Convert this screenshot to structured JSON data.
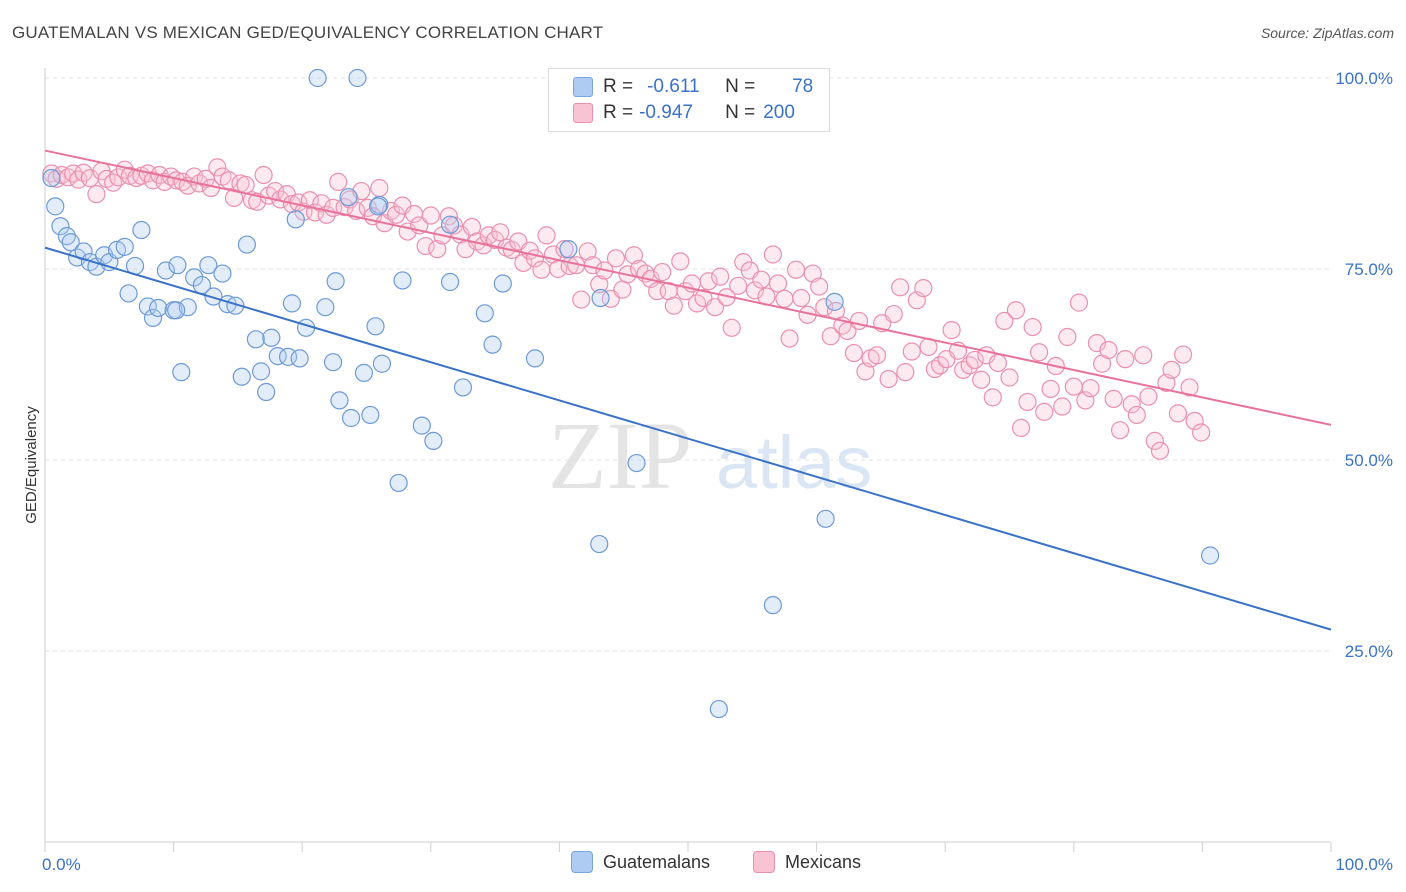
{
  "title": "GUATEMALAN VS MEXICAN GED/EQUIVALENCY CORRELATION CHART",
  "source": "Source: ZipAtlas.com",
  "watermark": {
    "zip": "ZIP",
    "atlas": "atlas"
  },
  "legend_top": [
    {
      "r_label": "R =",
      "r_value": "-0.611",
      "n_label": "N =",
      "n_value": "78",
      "fill": "#aecbf2",
      "stroke": "#7aa5e0"
    },
    {
      "r_label": "R =",
      "r_value": "-0.947",
      "n_label": "N =",
      "n_value": "200",
      "fill": "#f8c3d3",
      "stroke": "#ea90ad"
    }
  ],
  "legend_bottom": [
    {
      "label": "Guatemalans",
      "fill": "#aecbf2",
      "stroke": "#7aa5e0"
    },
    {
      "label": "Mexicans",
      "fill": "#f8c3d3",
      "stroke": "#ea90ad"
    }
  ],
  "chart_data": {
    "type": "scatter",
    "title": "GUATEMALAN VS MEXICAN GED/EQUIVALENCY CORRELATION CHART",
    "xlabel": "",
    "ylabel": "GED/Equivalency",
    "xlim": [
      0,
      100
    ],
    "ylim": [
      0,
      100
    ],
    "x_tick_labels": [
      "0.0%",
      "100.0%"
    ],
    "y_ticks": [
      25,
      50,
      75,
      100
    ],
    "y_tick_labels": [
      "25.0%",
      "50.0%",
      "75.0%",
      "100.0%"
    ],
    "grid": true,
    "legend_placement": "top-center",
    "series": [
      {
        "name": "Guatemalans",
        "color": "#5b8fd8",
        "trend": {
          "x": [
            0,
            100
          ],
          "y": [
            77.8,
            27.8
          ],
          "color": "#3a72c8"
        },
        "points": [
          [
            0.5,
            86.9
          ],
          [
            0.8,
            83.2
          ],
          [
            1.2,
            80.6
          ],
          [
            1.7,
            79.3
          ],
          [
            2.0,
            78.5
          ],
          [
            2.5,
            76.5
          ],
          [
            3.0,
            77.3
          ],
          [
            3.5,
            75.9
          ],
          [
            4.0,
            75.3
          ],
          [
            4.6,
            76.8
          ],
          [
            5.0,
            75.9
          ],
          [
            5.6,
            77.5
          ],
          [
            6.2,
            77.9
          ],
          [
            6.5,
            71.8
          ],
          [
            7.0,
            75.4
          ],
          [
            7.5,
            80.1
          ],
          [
            8.0,
            70.1
          ],
          [
            8.4,
            68.6
          ],
          [
            8.8,
            69.9
          ],
          [
            9.4,
            74.8
          ],
          [
            10.0,
            69.6
          ],
          [
            10.3,
            75.5
          ],
          [
            10.6,
            61.5
          ],
          [
            11.1,
            70.0
          ],
          [
            11.6,
            73.9
          ],
          [
            12.2,
            72.9
          ],
          [
            12.7,
            75.5
          ],
          [
            13.1,
            71.4
          ],
          [
            13.8,
            74.4
          ],
          [
            14.2,
            70.4
          ],
          [
            14.8,
            70.2
          ],
          [
            15.3,
            60.9
          ],
          [
            15.7,
            78.2
          ],
          [
            16.4,
            65.8
          ],
          [
            16.8,
            61.6
          ],
          [
            17.2,
            58.9
          ],
          [
            17.6,
            66.0
          ],
          [
            18.1,
            63.6
          ],
          [
            18.9,
            63.5
          ],
          [
            19.2,
            70.5
          ],
          [
            19.5,
            81.5
          ],
          [
            19.8,
            63.3
          ],
          [
            20.3,
            67.3
          ],
          [
            21.2,
            100.0
          ],
          [
            21.8,
            70.0
          ],
          [
            22.4,
            62.8
          ],
          [
            22.6,
            73.4
          ],
          [
            22.9,
            57.8
          ],
          [
            23.6,
            84.4
          ],
          [
            23.8,
            55.5
          ],
          [
            24.3,
            100.0
          ],
          [
            24.8,
            61.4
          ],
          [
            25.3,
            55.9
          ],
          [
            25.7,
            67.5
          ],
          [
            26.0,
            83.4
          ],
          [
            26.2,
            62.6
          ],
          [
            27.5,
            47.0
          ],
          [
            27.8,
            73.5
          ],
          [
            29.3,
            54.5
          ],
          [
            30.2,
            52.5
          ],
          [
            31.5,
            73.3
          ],
          [
            32.5,
            59.5
          ],
          [
            34.2,
            69.2
          ],
          [
            34.8,
            65.1
          ],
          [
            35.6,
            73.1
          ],
          [
            38.1,
            63.3
          ],
          [
            43.1,
            39.0
          ],
          [
            43.2,
            71.2
          ],
          [
            46.0,
            49.6
          ],
          [
            52.4,
            17.4
          ],
          [
            56.6,
            31.0
          ],
          [
            60.7,
            42.3
          ],
          [
            61.4,
            70.7
          ],
          [
            90.6,
            37.5
          ],
          [
            40.7,
            77.6
          ],
          [
            25.9,
            83.2
          ],
          [
            31.5,
            80.8
          ],
          [
            10.2,
            69.6
          ]
        ]
      },
      {
        "name": "Mexicans",
        "color": "#ea7fa3",
        "trend": {
          "x": [
            0,
            100
          ],
          "y": [
            90.5,
            54.6
          ],
          "color": "#e8739a"
        },
        "points": [
          [
            0.5,
            87.5
          ],
          [
            0.9,
            86.8
          ],
          [
            1.3,
            87.3
          ],
          [
            1.8,
            87.0
          ],
          [
            2.2,
            87.5
          ],
          [
            2.6,
            86.7
          ],
          [
            3.0,
            87.6
          ],
          [
            3.5,
            86.9
          ],
          [
            4.0,
            84.8
          ],
          [
            4.4,
            87.8
          ],
          [
            4.8,
            86.8
          ],
          [
            5.3,
            86.3
          ],
          [
            5.7,
            87.0
          ],
          [
            6.2,
            88.0
          ],
          [
            6.6,
            87.2
          ],
          [
            7.1,
            86.9
          ],
          [
            7.5,
            87.2
          ],
          [
            8.0,
            87.5
          ],
          [
            8.4,
            86.6
          ],
          [
            8.9,
            87.3
          ],
          [
            9.3,
            86.4
          ],
          [
            9.8,
            87.1
          ],
          [
            10.2,
            86.6
          ],
          [
            10.7,
            86.4
          ],
          [
            11.1,
            85.9
          ],
          [
            11.6,
            87.1
          ],
          [
            12.0,
            86.2
          ],
          [
            12.5,
            86.8
          ],
          [
            12.9,
            85.6
          ],
          [
            13.4,
            88.3
          ],
          [
            13.8,
            87.1
          ],
          [
            14.3,
            86.6
          ],
          [
            14.7,
            84.3
          ],
          [
            15.2,
            86.2
          ],
          [
            15.6,
            86.0
          ],
          [
            16.1,
            84.0
          ],
          [
            16.5,
            83.8
          ],
          [
            17.0,
            87.3
          ],
          [
            17.4,
            84.6
          ],
          [
            17.9,
            85.2
          ],
          [
            18.3,
            84.1
          ],
          [
            18.8,
            84.8
          ],
          [
            19.2,
            83.5
          ],
          [
            19.7,
            83.7
          ],
          [
            20.1,
            82.5
          ],
          [
            20.6,
            84.0
          ],
          [
            21.0,
            82.4
          ],
          [
            21.5,
            83.6
          ],
          [
            21.9,
            82.1
          ],
          [
            22.4,
            83.0
          ],
          [
            22.8,
            86.4
          ],
          [
            23.3,
            83.1
          ],
          [
            23.7,
            84.1
          ],
          [
            24.2,
            82.6
          ],
          [
            24.6,
            85.2
          ],
          [
            25.1,
            83.0
          ],
          [
            25.5,
            81.9
          ],
          [
            26.0,
            85.6
          ],
          [
            26.4,
            81.0
          ],
          [
            26.9,
            82.6
          ],
          [
            27.3,
            82.1
          ],
          [
            27.8,
            83.3
          ],
          [
            28.2,
            79.9
          ],
          [
            28.7,
            82.2
          ],
          [
            29.1,
            80.7
          ],
          [
            29.6,
            78.0
          ],
          [
            30.0,
            82.0
          ],
          [
            30.5,
            77.6
          ],
          [
            30.9,
            79.4
          ],
          [
            31.4,
            81.9
          ],
          [
            31.8,
            80.7
          ],
          [
            32.3,
            79.5
          ],
          [
            32.7,
            77.6
          ],
          [
            33.2,
            80.5
          ],
          [
            33.6,
            78.6
          ],
          [
            34.1,
            78.1
          ],
          [
            34.5,
            79.4
          ],
          [
            35.0,
            78.8
          ],
          [
            35.4,
            79.8
          ],
          [
            35.9,
            77.8
          ],
          [
            36.3,
            77.5
          ],
          [
            36.8,
            78.6
          ],
          [
            37.2,
            75.8
          ],
          [
            37.7,
            77.4
          ],
          [
            38.1,
            76.4
          ],
          [
            38.6,
            74.9
          ],
          [
            39.0,
            79.4
          ],
          [
            39.5,
            76.9
          ],
          [
            39.9,
            75.0
          ],
          [
            40.4,
            77.6
          ],
          [
            40.8,
            75.4
          ],
          [
            41.3,
            75.5
          ],
          [
            41.7,
            71.0
          ],
          [
            42.2,
            77.3
          ],
          [
            42.6,
            75.5
          ],
          [
            43.1,
            73.0
          ],
          [
            43.5,
            74.8
          ],
          [
            44.0,
            71.1
          ],
          [
            44.4,
            76.4
          ],
          [
            44.9,
            72.3
          ],
          [
            45.3,
            74.3
          ],
          [
            45.8,
            76.8
          ],
          [
            46.2,
            75.0
          ],
          [
            46.7,
            74.4
          ],
          [
            47.1,
            73.7
          ],
          [
            47.6,
            72.1
          ],
          [
            48.0,
            74.6
          ],
          [
            48.5,
            72.1
          ],
          [
            48.9,
            70.2
          ],
          [
            49.4,
            76.0
          ],
          [
            49.8,
            72.1
          ],
          [
            50.3,
            73.1
          ],
          [
            50.7,
            70.5
          ],
          [
            51.2,
            71.2
          ],
          [
            51.6,
            73.4
          ],
          [
            52.1,
            70.0
          ],
          [
            52.5,
            74.0
          ],
          [
            53.0,
            71.3
          ],
          [
            53.4,
            67.3
          ],
          [
            53.9,
            72.8
          ],
          [
            54.3,
            75.9
          ],
          [
            54.8,
            74.8
          ],
          [
            55.2,
            72.2
          ],
          [
            55.7,
            73.6
          ],
          [
            56.1,
            71.4
          ],
          [
            56.6,
            76.9
          ],
          [
            57.0,
            73.1
          ],
          [
            57.5,
            71.1
          ],
          [
            57.9,
            65.9
          ],
          [
            58.4,
            74.9
          ],
          [
            58.8,
            71.2
          ],
          [
            59.3,
            69.0
          ],
          [
            59.7,
            74.4
          ],
          [
            60.2,
            72.7
          ],
          [
            60.6,
            70.0
          ],
          [
            61.1,
            66.2
          ],
          [
            61.5,
            69.5
          ],
          [
            62.0,
            67.6
          ],
          [
            62.4,
            66.9
          ],
          [
            62.9,
            64.0
          ],
          [
            63.3,
            68.2
          ],
          [
            63.8,
            61.6
          ],
          [
            64.2,
            63.3
          ],
          [
            64.7,
            63.7
          ],
          [
            65.1,
            67.9
          ],
          [
            65.6,
            60.6
          ],
          [
            66.0,
            69.1
          ],
          [
            66.5,
            72.6
          ],
          [
            66.9,
            61.5
          ],
          [
            67.4,
            64.2
          ],
          [
            67.8,
            70.9
          ],
          [
            68.3,
            72.5
          ],
          [
            68.7,
            64.8
          ],
          [
            69.2,
            61.9
          ],
          [
            69.6,
            62.4
          ],
          [
            70.1,
            63.2
          ],
          [
            70.5,
            67.0
          ],
          [
            71.0,
            64.3
          ],
          [
            71.4,
            61.8
          ],
          [
            71.9,
            62.4
          ],
          [
            72.3,
            63.1
          ],
          [
            72.8,
            60.5
          ],
          [
            73.2,
            63.7
          ],
          [
            73.7,
            58.2
          ],
          [
            74.1,
            62.7
          ],
          [
            74.6,
            68.2
          ],
          [
            75.0,
            60.8
          ],
          [
            75.5,
            69.6
          ],
          [
            75.9,
            54.2
          ],
          [
            76.4,
            57.6
          ],
          [
            76.8,
            67.4
          ],
          [
            77.3,
            64.1
          ],
          [
            77.7,
            56.3
          ],
          [
            78.2,
            59.3
          ],
          [
            78.6,
            62.3
          ],
          [
            79.1,
            57.0
          ],
          [
            79.5,
            66.1
          ],
          [
            80.0,
            59.6
          ],
          [
            80.4,
            70.6
          ],
          [
            80.9,
            57.8
          ],
          [
            81.3,
            59.4
          ],
          [
            81.8,
            65.3
          ],
          [
            82.2,
            62.6
          ],
          [
            82.7,
            64.4
          ],
          [
            83.1,
            58.0
          ],
          [
            83.6,
            53.9
          ],
          [
            84.0,
            63.2
          ],
          [
            84.5,
            57.3
          ],
          [
            84.9,
            55.9
          ],
          [
            85.4,
            63.7
          ],
          [
            85.8,
            58.3
          ],
          [
            86.3,
            52.5
          ],
          [
            86.7,
            51.2
          ],
          [
            87.2,
            60.1
          ],
          [
            87.6,
            61.8
          ],
          [
            88.1,
            56.1
          ],
          [
            88.5,
            63.8
          ],
          [
            89.0,
            59.5
          ],
          [
            89.4,
            55.1
          ],
          [
            89.9,
            53.6
          ]
        ]
      }
    ]
  }
}
